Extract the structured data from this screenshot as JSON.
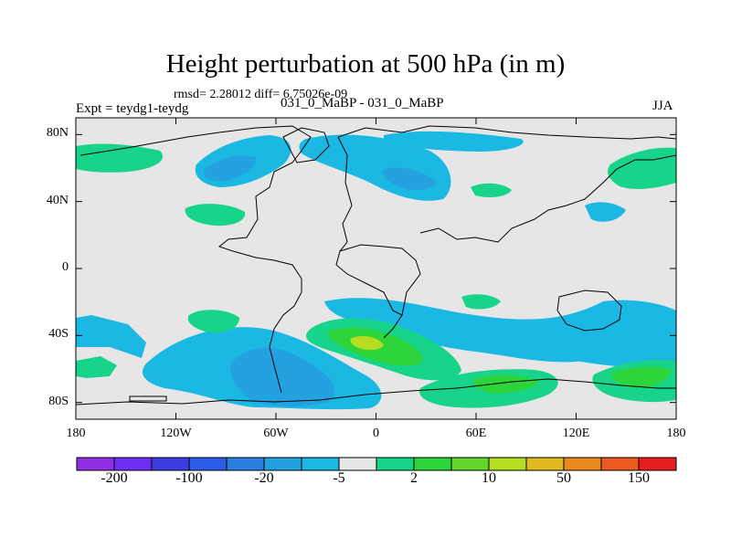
{
  "title": "Height perturbation at 500 hPa (in m)",
  "stats_line": "rmsd= 2.28012 diff= 6.75026e-09",
  "experiment_label": "Expt = teydg1-teydg",
  "experiment_names": "031_0_MaBP - 031_0_MaBP",
  "season": "JJA",
  "map": {
    "projection": "cylindrical equidistant",
    "lon_range": [
      -180,
      180
    ],
    "lat_range": [
      -90,
      90
    ],
    "background_color": "#e6e6e6",
    "y_ticks": [
      "80N",
      "40N",
      "0",
      "40S",
      "80S"
    ],
    "x_ticks": [
      "180",
      "120W",
      "60W",
      "0",
      "60E",
      "120E",
      "180"
    ]
  },
  "colorbar": {
    "colors": [
      "#8f2fe6",
      "#6f2ff2",
      "#3e3de2",
      "#2c5be8",
      "#2a7ee0",
      "#24a2e0",
      "#1ab8e3",
      "#e6e6e6",
      "#18d48a",
      "#2dd53a",
      "#64d62a",
      "#b6dd20",
      "#e0b81f",
      "#e88a1f",
      "#ec5a1f",
      "#e81e1e"
    ],
    "labels": [
      "-200",
      "-100",
      "-20",
      "-5",
      "2",
      "10",
      "50",
      "150"
    ]
  },
  "colors": {
    "land_outline": "#000000",
    "positive_small": "#18d48a",
    "positive_mid": "#2dd53a",
    "positive_high": "#b6dd20",
    "negative_small": "#1ab8e3",
    "negative_mid": "#24a2e0",
    "negative_high": "#2a7ee0"
  },
  "anomaly_regions": [
    {
      "name": "north-atlantic-pacific-negative",
      "lon": -75,
      "lat": 55,
      "sign": "negative",
      "level": "-5"
    },
    {
      "name": "siberia-negative",
      "lon": 35,
      "lat": 57,
      "sign": "negative",
      "level": "-5"
    },
    {
      "name": "southern-pacific-negative",
      "lon": -60,
      "lat": -65,
      "sign": "negative",
      "level": "-20"
    },
    {
      "name": "southern-atlantic-positive",
      "lon": -10,
      "lat": -50,
      "sign": "positive",
      "level": "10"
    },
    {
      "name": "southern-indian-positive",
      "lon": 70,
      "lat": -73,
      "sign": "positive",
      "level": "10"
    },
    {
      "name": "southern-ocean-east-positive",
      "lon": 160,
      "lat": -68,
      "sign": "positive",
      "level": "10"
    },
    {
      "name": "arctic-positive",
      "lon": -150,
      "lat": 75,
      "sign": "positive",
      "level": "2"
    },
    {
      "name": "north-america-positive",
      "lon": -100,
      "lat": 35,
      "sign": "positive",
      "level": "2"
    },
    {
      "name": "east-asia-positive",
      "lon": 155,
      "lat": 55,
      "sign": "positive",
      "level": "2"
    }
  ]
}
